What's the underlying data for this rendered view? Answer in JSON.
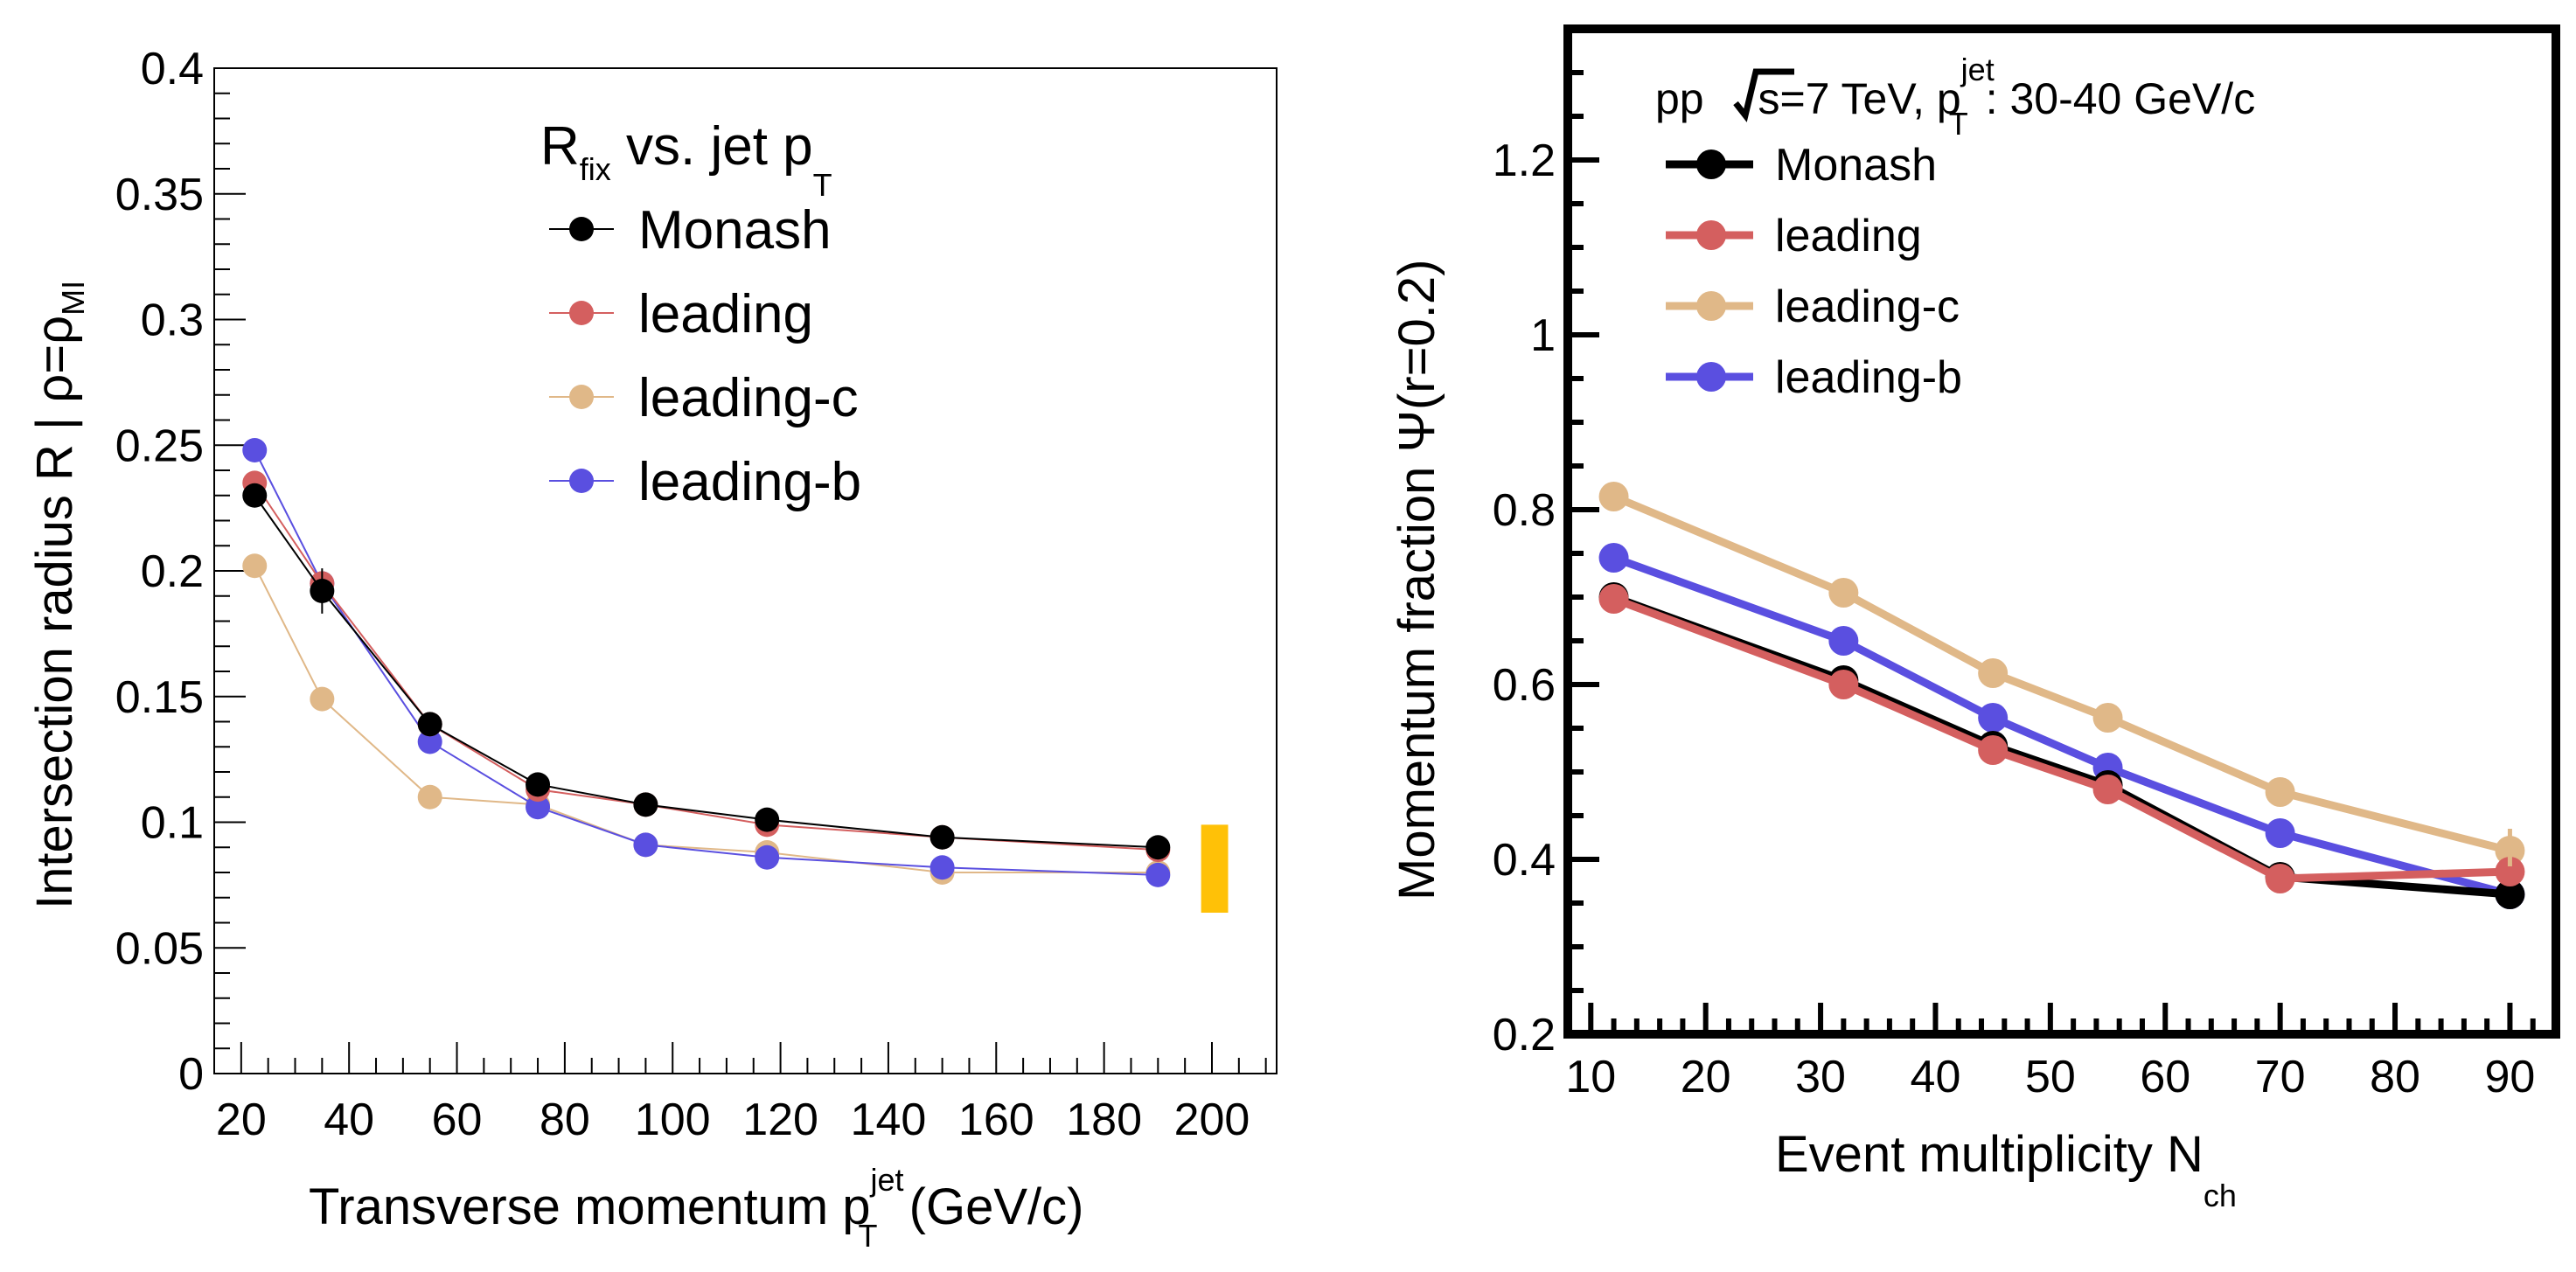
{
  "chart_data": [
    {
      "type": "line",
      "title": "",
      "xlabel": "Transverse momentum p",
      "xlabel_sup": "jet",
      "xlabel_sub": "T",
      "xlabel_suffix": " (GeV/c)",
      "ylabel": "Intersection radius R | ρ=ρ",
      "ylabel_sub": "MI",
      "xlim": [
        15,
        212
      ],
      "ylim": [
        0,
        0.4
      ],
      "xticks": [
        20,
        40,
        60,
        80,
        100,
        120,
        140,
        160,
        180,
        200
      ],
      "xtick_labels": [
        "20",
        "40",
        "60",
        "80",
        "100",
        "120",
        "140",
        "160",
        "180",
        "200"
      ],
      "yticks": [
        0,
        0.05,
        0.1,
        0.15,
        0.2,
        0.25,
        0.3,
        0.35,
        0.4
      ],
      "ytick_labels": [
        "0",
        "0.05",
        "0.1",
        "0.15",
        "0.2",
        "0.25",
        "0.3",
        "0.35",
        "0.4"
      ],
      "legend_title": "R",
      "legend_title_sub": "fix",
      "legend_title_rest": " vs. jet p",
      "legend_title_rest_sub": "T",
      "legend_position": "top-center",
      "x": [
        22.5,
        35,
        55,
        75,
        95,
        117.5,
        150,
        190
      ],
      "series": [
        {
          "name": "Monash",
          "color": "#000000",
          "values": [
            0.23,
            0.192,
            0.139,
            0.115,
            0.107,
            0.101,
            0.094,
            0.09
          ]
        },
        {
          "name": "leading",
          "color": "#d45f5f",
          "values": [
            0.235,
            0.195,
            0.139,
            0.113,
            0.107,
            0.099,
            0.094,
            0.089
          ]
        },
        {
          "name": "leading-c",
          "color": "#e0b888",
          "values": [
            0.202,
            0.149,
            0.11,
            0.107,
            0.091,
            0.088,
            0.08,
            0.08
          ]
        },
        {
          "name": "leading-b",
          "color": "#5a4fe0",
          "values": [
            0.248,
            0.195,
            0.132,
            0.106,
            0.091,
            0.086,
            0.082,
            0.079
          ]
        }
      ],
      "uncertainty_band": {
        "color": "#ffc107",
        "x_range": [
          198,
          203
        ],
        "y_range": [
          0.064,
          0.099
        ]
      }
    },
    {
      "type": "line",
      "title": "",
      "xlabel": "Event multiplicity N",
      "xlabel_sub": "ch",
      "ylabel": "Momentum fraction Ψ(r=0.2)",
      "xlim": [
        8,
        94
      ],
      "ylim": [
        0.2,
        1.35
      ],
      "xticks": [
        10,
        20,
        30,
        40,
        50,
        60,
        70,
        80,
        90
      ],
      "xtick_labels": [
        "10",
        "20",
        "30",
        "40",
        "50",
        "60",
        "70",
        "80",
        "90"
      ],
      "yticks": [
        0.2,
        0.4,
        0.6,
        0.8,
        1.0,
        1.2
      ],
      "ytick_labels": [
        "0.2",
        "0.4",
        "0.6",
        "0.8",
        "1",
        "1.2"
      ],
      "annotation_pre": "pp ",
      "annotation_sqrt": "s",
      "annotation_mid": "=7 TeV, p",
      "annotation_sup": "jet",
      "annotation_sub": "T",
      "annotation_post": ": 30-40 GeV/c",
      "legend_position": "top-left",
      "x": [
        12,
        32,
        45,
        55,
        70,
        90
      ],
      "series": [
        {
          "name": "Monash",
          "color": "#000000",
          "values": [
            0.7,
            0.605,
            0.53,
            0.485,
            0.38,
            0.36
          ]
        },
        {
          "name": "leading",
          "color": "#d45f5f",
          "values": [
            0.698,
            0.6,
            0.525,
            0.48,
            0.378,
            0.386
          ]
        },
        {
          "name": "leading-c",
          "color": "#e0b888",
          "values": [
            0.815,
            0.705,
            0.613,
            0.562,
            0.477,
            0.41
          ]
        },
        {
          "name": "leading-b",
          "color": "#5a4fe0",
          "values": [
            0.745,
            0.65,
            0.562,
            0.505,
            0.43,
            0.36
          ]
        }
      ]
    }
  ]
}
